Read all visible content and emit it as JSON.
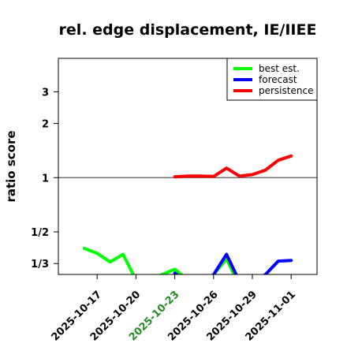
{
  "chart_data": {
    "type": "line",
    "title": "rel. edge displacement, IE/IIEE",
    "xlabel": "",
    "ylabel": "ratio score",
    "y_scale": "log",
    "y_ticks": [
      {
        "value": 0.3333,
        "label": "1/3"
      },
      {
        "value": 0.5,
        "label": "1/2"
      },
      {
        "value": 1,
        "label": "1"
      },
      {
        "value": 2,
        "label": "2"
      },
      {
        "value": 3,
        "label": "3"
      }
    ],
    "ylim": [
      0.29,
      4.6
    ],
    "xlim": [
      "2025-10-14",
      "2025-11-03"
    ],
    "x_ticks": [
      {
        "date": "2025-10-17",
        "label": "2025-10-17",
        "color": "#000000"
      },
      {
        "date": "2025-10-20",
        "label": "2025-10-20",
        "color": "#000000"
      },
      {
        "date": "2025-10-23",
        "label": "2025-10-23",
        "color": "#228B22"
      },
      {
        "date": "2025-10-26",
        "label": "2025-10-26",
        "color": "#000000"
      },
      {
        "date": "2025-10-29",
        "label": "2025-10-29",
        "color": "#000000"
      },
      {
        "date": "2025-11-01",
        "label": "2025-11-01",
        "color": "#000000"
      }
    ],
    "reference_line": 1,
    "legend": {
      "position": "top-right"
    },
    "series": [
      {
        "name": "best est.",
        "color": "#00ff00",
        "points": [
          [
            "2025-10-16",
            0.405
          ],
          [
            "2025-10-17",
            0.38
          ],
          [
            "2025-10-18",
            0.34
          ],
          [
            "2025-10-19",
            0.375
          ],
          [
            "2025-10-20",
            0.27
          ],
          [
            "2025-10-21",
            0.27
          ],
          [
            "2025-10-22",
            0.289
          ],
          [
            "2025-10-23",
            0.31
          ],
          [
            "2025-10-24",
            0.27
          ],
          [
            "2025-10-25",
            0.27
          ],
          [
            "2025-10-26",
            0.289
          ],
          [
            "2025-10-27",
            0.355
          ],
          [
            "2025-10-28",
            0.25
          ]
        ]
      },
      {
        "name": "forecast",
        "color": "#0000ff",
        "points": [
          [
            "2025-10-23",
            0.295
          ],
          [
            "2025-10-24",
            0.26
          ],
          [
            "2025-10-25",
            0.26
          ],
          [
            "2025-10-26",
            0.289
          ],
          [
            "2025-10-27",
            0.375
          ],
          [
            "2025-10-28",
            0.265
          ],
          [
            "2025-10-29",
            0.265
          ],
          [
            "2025-10-30",
            0.289
          ],
          [
            "2025-10-31",
            0.344
          ],
          [
            "2025-11-01",
            0.347
          ]
        ]
      },
      {
        "name": "persistence",
        "color": "#ff0000",
        "points": [
          [
            "2025-10-23",
            1.01
          ],
          [
            "2025-10-24",
            1.02
          ],
          [
            "2025-10-25",
            1.02
          ],
          [
            "2025-10-26",
            1.015
          ],
          [
            "2025-10-27",
            1.13
          ],
          [
            "2025-10-28",
            1.02
          ],
          [
            "2025-10-29",
            1.04
          ],
          [
            "2025-10-30",
            1.1
          ],
          [
            "2025-10-31",
            1.25
          ],
          [
            "2025-11-01",
            1.32
          ]
        ]
      }
    ]
  }
}
